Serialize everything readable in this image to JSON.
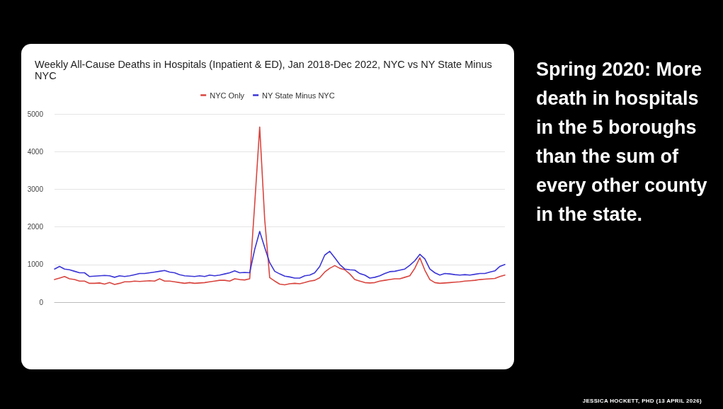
{
  "chart_data": {
    "type": "line",
    "title": "Weekly All-Cause Deaths in Hospitals (Inpatient & ED), Jan 2018-Dec 2022, NYC vs NY State Minus NYC",
    "categories": [
      null,
      null,
      null,
      null,
      null,
      null,
      null,
      null,
      null,
      null,
      null,
      null,
      null,
      null,
      null,
      null,
      null,
      null,
      null,
      null,
      null,
      null,
      null,
      null,
      null,
      null,
      null,
      null,
      null,
      null,
      null,
      null,
      null,
      null,
      null,
      null,
      null,
      null,
      null,
      null,
      null,
      null,
      null,
      null,
      null,
      null,
      null,
      null,
      null,
      null,
      null,
      null,
      null,
      null,
      null,
      null,
      null,
      null,
      null,
      null,
      null,
      null,
      null,
      null,
      null,
      null,
      null,
      null,
      null,
      null,
      null,
      null,
      null,
      null,
      null,
      null,
      null,
      null,
      null,
      null,
      null,
      null,
      null,
      null,
      null,
      null,
      null,
      null,
      null,
      null,
      null
    ],
    "series": [
      {
        "name": "NYC Only",
        "color": "#d9453f",
        "values": [
          600,
          640,
          680,
          620,
          600,
          560,
          560,
          500,
          500,
          510,
          480,
          520,
          470,
          500,
          540,
          540,
          560,
          550,
          560,
          570,
          560,
          620,
          560,
          560,
          540,
          520,
          500,
          520,
          500,
          510,
          520,
          540,
          560,
          580,
          580,
          560,
          620,
          600,
          590,
          620,
          2600,
          4650,
          2200,
          650,
          560,
          480,
          460,
          490,
          500,
          490,
          520,
          560,
          580,
          650,
          800,
          900,
          970,
          900,
          860,
          750,
          600,
          560,
          520,
          510,
          520,
          560,
          580,
          600,
          620,
          620,
          660,
          700,
          900,
          1180,
          850,
          600,
          520,
          500,
          510,
          520,
          530,
          540,
          560,
          570,
          580,
          600,
          610,
          620,
          630,
          680,
          720
        ]
      },
      {
        "name": "NY State Minus NYC",
        "color": "#3b36d6",
        "values": [
          880,
          950,
          880,
          860,
          820,
          780,
          780,
          680,
          690,
          700,
          710,
          700,
          660,
          700,
          680,
          700,
          730,
          760,
          760,
          780,
          800,
          820,
          840,
          800,
          780,
          730,
          700,
          690,
          680,
          700,
          680,
          720,
          700,
          720,
          750,
          780,
          830,
          780,
          790,
          780,
          1400,
          1880,
          1450,
          1050,
          820,
          750,
          690,
          670,
          640,
          640,
          700,
          720,
          780,
          950,
          1250,
          1350,
          1180,
          1000,
          880,
          860,
          850,
          760,
          720,
          640,
          660,
          700,
          760,
          810,
          820,
          850,
          880,
          980,
          1100,
          1270,
          1150,
          880,
          780,
          720,
          760,
          750,
          730,
          720,
          730,
          720,
          740,
          760,
          760,
          800,
          830,
          950,
          1000
        ]
      }
    ],
    "ylim": [
      0,
      5000
    ],
    "yticks": [
      0,
      1000,
      2000,
      3000,
      4000,
      5000
    ],
    "grid": "y",
    "legend": "top",
    "marker": "none",
    "annotations": [
      "Spring 2020: More death in hospitals in the 5 boroughs than the sum of every other county in the state.",
      "JESSICA HOCKETT, PHD (13 APRIL 2026)"
    ]
  }
}
